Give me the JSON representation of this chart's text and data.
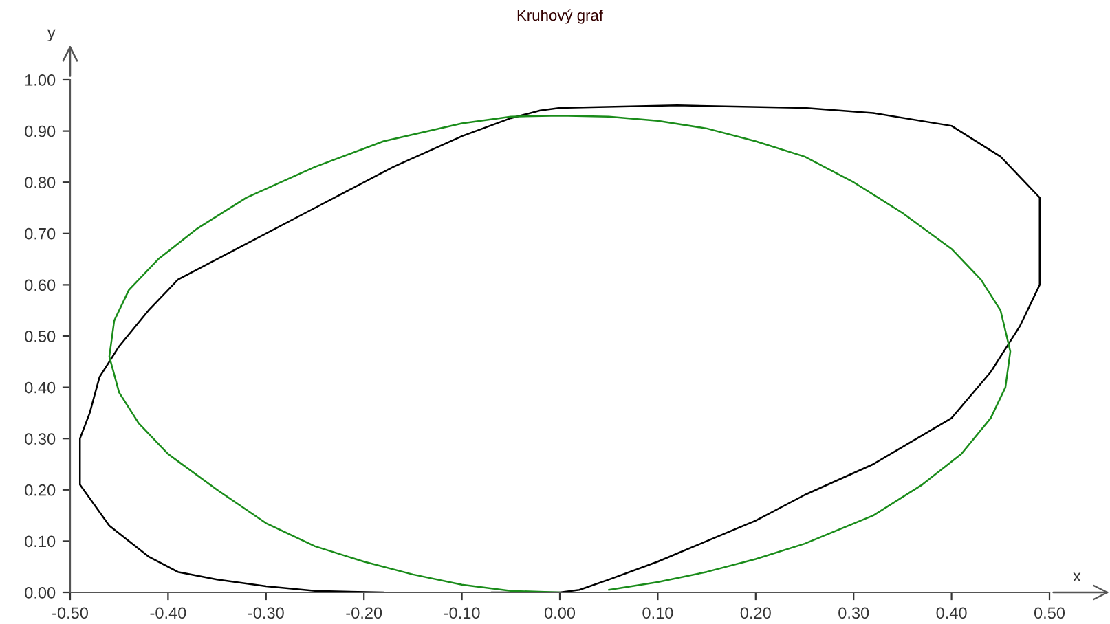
{
  "chart_data": {
    "type": "line",
    "title": "Kruhový graf",
    "xlabel": "x",
    "ylabel": "y",
    "xlim": [
      -0.5,
      0.5
    ],
    "ylim": [
      0,
      1
    ],
    "xticks": [
      {
        "value": -0.5,
        "label": "-0.50"
      },
      {
        "value": -0.4,
        "label": "-0.40"
      },
      {
        "value": -0.3,
        "label": "-0.30"
      },
      {
        "value": -0.2,
        "label": "-0.20"
      },
      {
        "value": -0.1,
        "label": "-0.10"
      },
      {
        "value": 0,
        "label": "0.00"
      },
      {
        "value": 0.1,
        "label": "0.10"
      },
      {
        "value": 0.2,
        "label": "0.20"
      },
      {
        "value": 0.3,
        "label": "0.30"
      },
      {
        "value": 0.4,
        "label": "0.40"
      },
      {
        "value": 0.5,
        "label": "0.50"
      }
    ],
    "yticks": [
      {
        "value": 0,
        "label": "0.00"
      },
      {
        "value": 0.1,
        "label": "0.10"
      },
      {
        "value": 0.2,
        "label": "0.20"
      },
      {
        "value": 0.3,
        "label": "0.30"
      },
      {
        "value": 0.4,
        "label": "0.40"
      },
      {
        "value": 0.5,
        "label": "0.50"
      },
      {
        "value": 0.6,
        "label": "0.60"
      },
      {
        "value": 0.7,
        "label": "0.70"
      },
      {
        "value": 0.8,
        "label": "0.80"
      },
      {
        "value": 0.9,
        "label": "0.90"
      },
      {
        "value": 1,
        "label": "1.00"
      }
    ],
    "grid": false,
    "legend": false,
    "marker": "none",
    "line_style": "solid",
    "series": [
      {
        "color": "#000000",
        "x": [
          -0.18,
          -0.25,
          -0.3,
          -0.35,
          -0.39,
          -0.42,
          -0.46,
          -0.49,
          -0.49,
          -0.48,
          -0.47,
          -0.45,
          -0.42,
          -0.39,
          -0.33,
          -0.25,
          -0.17,
          -0.1,
          -0.05,
          -0.02,
          0.0,
          0.12,
          0.25,
          0.32,
          0.4,
          0.45,
          0.49,
          0.49,
          0.49,
          0.47,
          0.44,
          0.4,
          0.32,
          0.25,
          0.2,
          0.15,
          0.1,
          0.05,
          0.02,
          0.0,
          -0.07
        ],
        "values": [
          0.0,
          0.003,
          0.012,
          0.025,
          0.04,
          0.07,
          0.13,
          0.21,
          0.3,
          0.35,
          0.42,
          0.48,
          0.55,
          0.61,
          0.67,
          0.75,
          0.83,
          0.89,
          0.925,
          0.94,
          0.945,
          0.95,
          0.945,
          0.935,
          0.91,
          0.85,
          0.77,
          0.74,
          0.6,
          0.52,
          0.43,
          0.34,
          0.25,
          0.19,
          0.14,
          0.1,
          0.06,
          0.025,
          0.005,
          0.0,
          0.0
        ]
      },
      {
        "color": "#1a8c1a",
        "x": [
          0.0,
          -0.05,
          -0.1,
          -0.15,
          -0.2,
          -0.25,
          -0.3,
          -0.35,
          -0.4,
          -0.43,
          -0.45,
          -0.46,
          -0.455,
          -0.44,
          -0.41,
          -0.37,
          -0.32,
          -0.25,
          -0.18,
          -0.1,
          -0.05,
          0.0,
          0.05,
          0.1,
          0.15,
          0.2,
          0.25,
          0.3,
          0.35,
          0.4,
          0.43,
          0.45,
          0.46,
          0.455,
          0.44,
          0.41,
          0.37,
          0.32,
          0.25,
          0.2,
          0.15,
          0.1,
          0.05
        ],
        "values": [
          0.0,
          0.003,
          0.015,
          0.035,
          0.06,
          0.09,
          0.135,
          0.2,
          0.27,
          0.33,
          0.39,
          0.46,
          0.53,
          0.59,
          0.65,
          0.71,
          0.77,
          0.83,
          0.88,
          0.915,
          0.928,
          0.93,
          0.928,
          0.92,
          0.905,
          0.88,
          0.85,
          0.8,
          0.74,
          0.67,
          0.61,
          0.55,
          0.47,
          0.4,
          0.34,
          0.27,
          0.21,
          0.15,
          0.095,
          0.065,
          0.04,
          0.02,
          0.005
        ]
      }
    ]
  }
}
